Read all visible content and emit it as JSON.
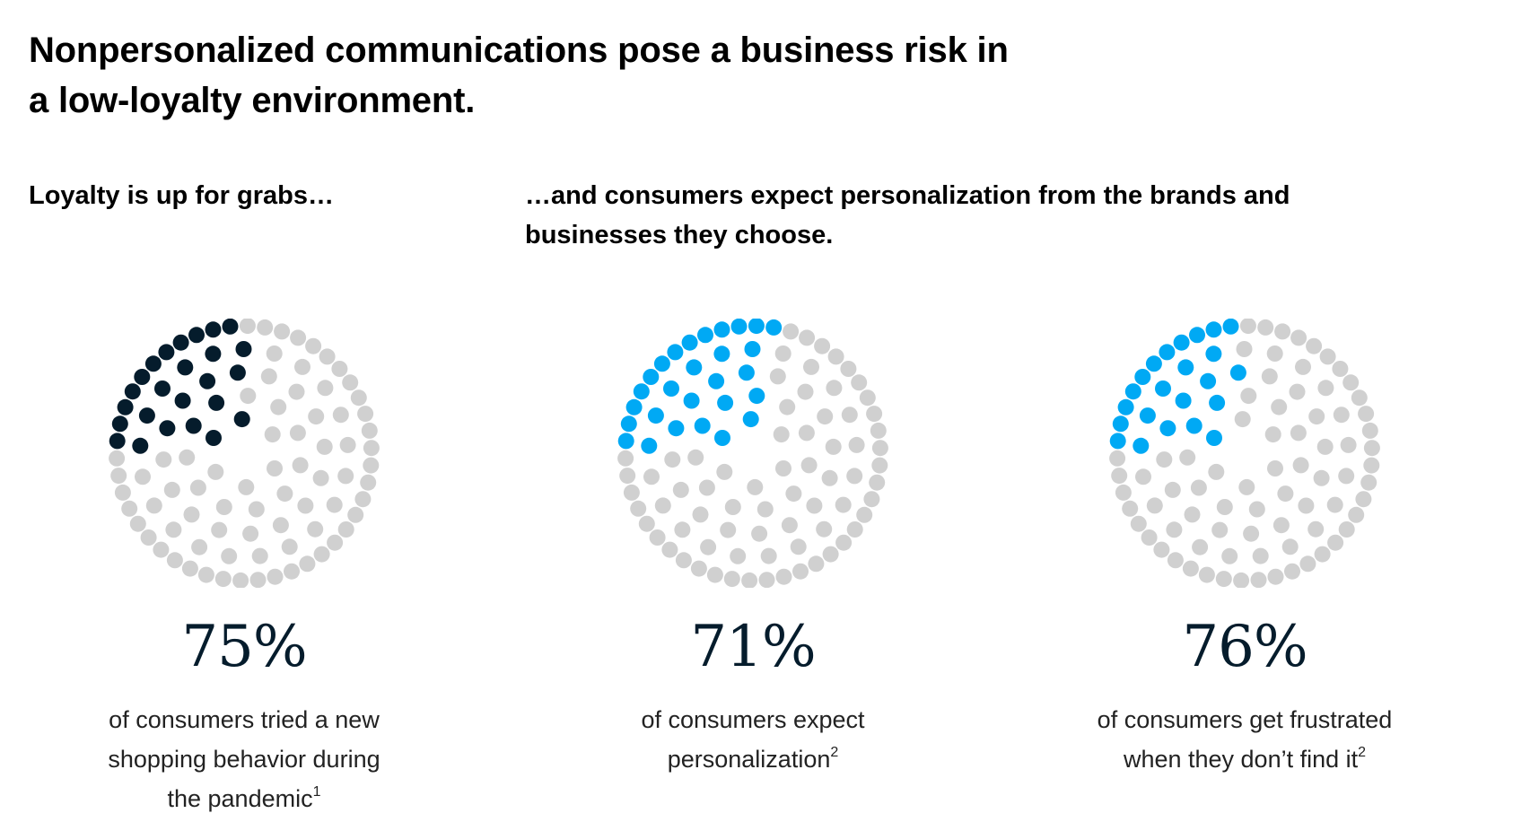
{
  "title_line1": "Nonpersonalized communications pose a business risk in",
  "title_line2": "a low-loyalty environment.",
  "subtitle_left": "Loyalty is up for grabs…",
  "subtitle_right_line1": "…and consumers expect personalization from the brands and",
  "subtitle_right_line2": "businesses they choose.",
  "colors": {
    "inactive_dot": "#d0d0d0",
    "dark_navy": "#051c2c",
    "bright_blue": "#00a9f4",
    "stat_text": "#051c2c",
    "body_text": "#222222"
  },
  "chart_data": [
    {
      "type": "pie",
      "style": "dot-circle",
      "total_dots": 100,
      "value": 75,
      "value_label": "75%",
      "description_line1": "of consumers tried a new",
      "description_line2": "shopping behavior during",
      "description_line3": "the pandemic",
      "footnote": "1",
      "fill_color": "#051c2c"
    },
    {
      "type": "pie",
      "style": "dot-circle",
      "total_dots": 100,
      "value": 71,
      "value_label": "71%",
      "description_line1": "of consumers expect",
      "description_line2": "personalization",
      "footnote": "2",
      "fill_color": "#00a9f4"
    },
    {
      "type": "pie",
      "style": "dot-circle",
      "total_dots": 100,
      "value": 76,
      "value_label": "76%",
      "description_line1": "of consumers get frustrated",
      "description_line2": "when they don’t find it",
      "footnote": "2",
      "fill_color": "#00a9f4"
    }
  ]
}
